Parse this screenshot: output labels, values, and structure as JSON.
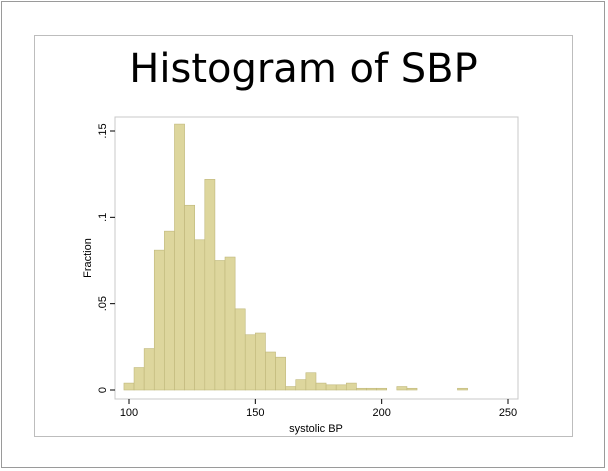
{
  "slide": {
    "title": "Histogram of SBP"
  },
  "chart_data": {
    "type": "bar",
    "subtype": "histogram",
    "xlabel": "systolic BP",
    "ylabel": "Fraction",
    "xlim": [
      95,
      255
    ],
    "ylim": [
      0,
      0.158
    ],
    "bin_width": 4,
    "x_ticks": [
      100,
      150,
      200,
      250
    ],
    "x_tick_labels": [
      "100",
      "150",
      "200",
      "250"
    ],
    "y_ticks": [
      0,
      0.05,
      0.1,
      0.15
    ],
    "y_tick_labels": [
      "0",
      ".05",
      ".1",
      ".15"
    ],
    "bar_color": "#ddd69d",
    "bar_edge_color": "#bfb77a",
    "grid": false,
    "bins": [
      {
        "x": 98,
        "value": 0.004
      },
      {
        "x": 102,
        "value": 0.013
      },
      {
        "x": 106,
        "value": 0.024
      },
      {
        "x": 110,
        "value": 0.081
      },
      {
        "x": 114,
        "value": 0.092
      },
      {
        "x": 118,
        "value": 0.154
      },
      {
        "x": 122,
        "value": 0.107
      },
      {
        "x": 126,
        "value": 0.087
      },
      {
        "x": 130,
        "value": 0.122
      },
      {
        "x": 134,
        "value": 0.075
      },
      {
        "x": 138,
        "value": 0.077
      },
      {
        "x": 142,
        "value": 0.047
      },
      {
        "x": 146,
        "value": 0.032
      },
      {
        "x": 150,
        "value": 0.033
      },
      {
        "x": 154,
        "value": 0.022
      },
      {
        "x": 158,
        "value": 0.019
      },
      {
        "x": 162,
        "value": 0.002
      },
      {
        "x": 166,
        "value": 0.006
      },
      {
        "x": 170,
        "value": 0.01
      },
      {
        "x": 174,
        "value": 0.004
      },
      {
        "x": 178,
        "value": 0.003
      },
      {
        "x": 182,
        "value": 0.003
      },
      {
        "x": 186,
        "value": 0.004
      },
      {
        "x": 190,
        "value": 0.001
      },
      {
        "x": 194,
        "value": 0.001
      },
      {
        "x": 198,
        "value": 0.001
      },
      {
        "x": 206,
        "value": 0.002
      },
      {
        "x": 210,
        "value": 0.001
      },
      {
        "x": 230,
        "value": 0.001
      }
    ]
  }
}
